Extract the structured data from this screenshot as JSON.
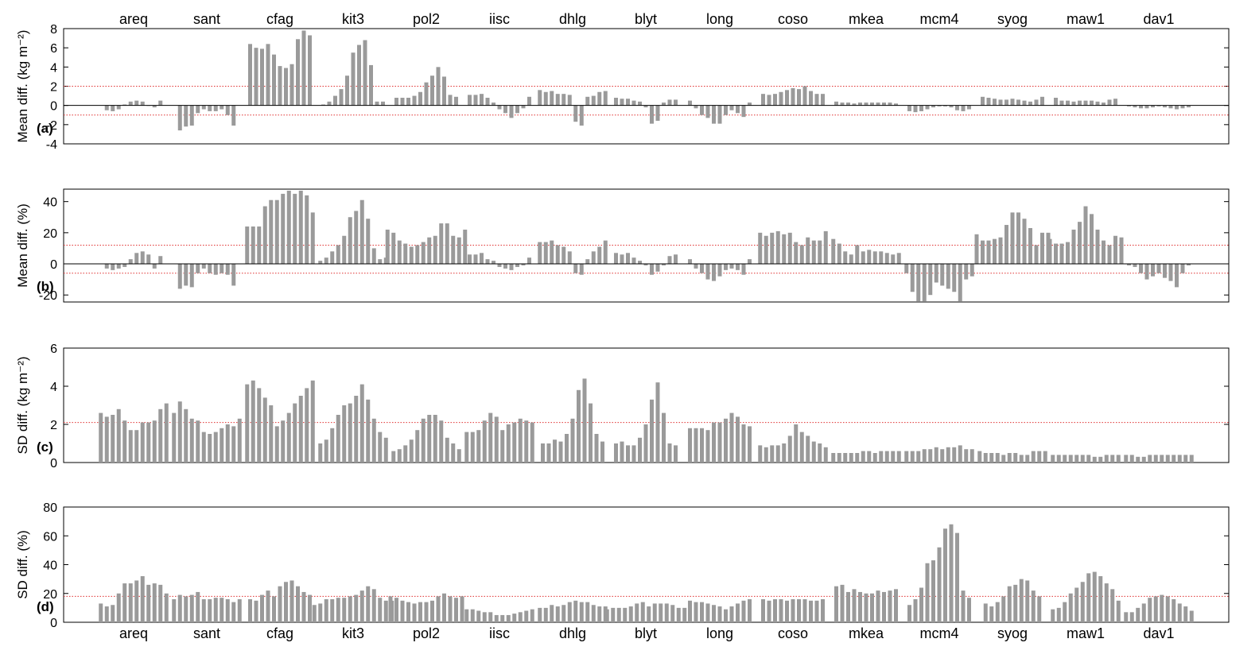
{
  "sites": [
    "areq",
    "sant",
    "cfag",
    "kit3",
    "pol2",
    "iisc",
    "dhlg",
    "blyt",
    "long",
    "coso",
    "mkea",
    "mcm4",
    "syog",
    "maw1",
    "dav1"
  ],
  "colors": {
    "bar": "#9a9a9a",
    "threshold": "#e03030",
    "axis": "#000000",
    "zero_line": "#000000"
  },
  "chart_data": [
    {
      "type": "bar",
      "panel": "(a)",
      "ylabel": "Mean diff. (kg m⁻²)",
      "ylim": [
        -4,
        8
      ],
      "yticks": [
        -4,
        -2,
        0,
        2,
        4,
        6,
        8
      ],
      "thresholds": [
        2.0,
        -1.0
      ],
      "zero_line": true,
      "series": [
        [
          -0.5,
          -0.6,
          -0.4,
          0.1,
          0.4,
          0.5,
          0.4,
          0.0,
          -0.2,
          0.5
        ],
        [
          -2.6,
          -2.2,
          -2.1,
          -0.8,
          -0.4,
          -0.6,
          -0.6,
          -0.4,
          -1.0,
          -2.1
        ],
        [
          6.4,
          6.0,
          5.9,
          6.4,
          5.3,
          4.1,
          3.9,
          4.3,
          6.9,
          7.8,
          7.3
        ],
        [
          0.1,
          0.4,
          1.0,
          1.7,
          3.1,
          5.5,
          6.3,
          6.8,
          4.2,
          0.4,
          0.4
        ],
        [
          0.8,
          0.8,
          0.8,
          1.0,
          1.4,
          2.4,
          3.1,
          4.0,
          3.0,
          1.1,
          0.9
        ],
        [
          1.1,
          1.1,
          1.2,
          0.8,
          0.3,
          -0.4,
          -0.8,
          -1.3,
          -0.8,
          -0.3,
          0.9
        ],
        [
          1.6,
          1.4,
          1.5,
          1.2,
          1.2,
          1.1,
          -1.7,
          -2.1,
          0.9,
          1.0,
          1.4,
          1.5
        ],
        [
          0.8,
          0.7,
          0.7,
          0.5,
          0.4,
          -0.2,
          -1.9,
          -1.6,
          0.3,
          0.6,
          0.6
        ],
        [
          0.5,
          -0.3,
          -1.0,
          -1.3,
          -1.9,
          -1.9,
          -1.0,
          -0.5,
          -0.8,
          -1.2,
          0.3
        ],
        [
          1.2,
          1.1,
          1.2,
          1.4,
          1.6,
          1.8,
          1.7,
          2.0,
          1.5,
          1.2,
          1.2
        ],
        [
          0.4,
          0.3,
          0.3,
          0.2,
          0.3,
          0.3,
          0.3,
          0.3,
          0.3,
          0.3,
          0.2
        ],
        [
          -0.6,
          -0.7,
          -0.6,
          -0.4,
          -0.2,
          -0.1,
          -0.1,
          -0.2,
          -0.5,
          -0.6,
          -0.4
        ],
        [
          0.9,
          0.8,
          0.7,
          0.6,
          0.6,
          0.7,
          0.6,
          0.5,
          0.4,
          0.6,
          0.9
        ],
        [
          0.8,
          0.5,
          0.5,
          0.4,
          0.5,
          0.5,
          0.5,
          0.4,
          0.3,
          0.6,
          0.7
        ],
        [
          -0.1,
          -0.2,
          -0.3,
          -0.3,
          -0.2,
          -0.1,
          -0.2,
          -0.3,
          -0.4,
          -0.3,
          -0.2
        ]
      ]
    },
    {
      "type": "bar",
      "panel": "(b)",
      "ylabel": "Mean diff. (%)",
      "ylim": [
        -24.5,
        48
      ],
      "yticks": [
        -20,
        0,
        20,
        40
      ],
      "thresholds": [
        12.0,
        -6.0
      ],
      "zero_line": true,
      "series": [
        [
          -3,
          -4,
          -3,
          -2,
          3,
          7,
          8,
          6,
          -3,
          5
        ],
        [
          -16,
          -14,
          -15,
          -6,
          -3,
          -6,
          -7,
          -6,
          -7,
          -14
        ],
        [
          24,
          24,
          24,
          37,
          41,
          41,
          45,
          47,
          45,
          47,
          44,
          33
        ],
        [
          2,
          4,
          8,
          12,
          18,
          30,
          34,
          41,
          29,
          10,
          3,
          4
        ],
        [
          22,
          20,
          15,
          13,
          11,
          12,
          14,
          17,
          18,
          26,
          26,
          18,
          17,
          22
        ],
        [
          6,
          6,
          7,
          3,
          2,
          -2,
          -3,
          -4,
          -2,
          -1,
          4
        ],
        [
          14,
          14,
          15,
          12,
          11,
          8,
          -6,
          -7,
          3,
          8,
          11,
          15
        ],
        [
          7,
          6,
          7,
          4,
          2,
          -1,
          -7,
          -5,
          -1,
          5,
          6
        ],
        [
          3,
          -3,
          -6,
          -10,
          -11,
          -8,
          -4,
          -3,
          -4,
          -7,
          3
        ],
        [
          20,
          18,
          20,
          21,
          19,
          20,
          14,
          12,
          17,
          15,
          15,
          21
        ],
        [
          16,
          13,
          8,
          6,
          12,
          8,
          9,
          8,
          8,
          7,
          6,
          7
        ],
        [
          -6,
          -18,
          -24,
          -24,
          -20,
          -12,
          -14,
          -16,
          -18,
          -24,
          -10,
          -8
        ],
        [
          19,
          15,
          15,
          16,
          17,
          25,
          33,
          33,
          29,
          23,
          12,
          20,
          20
        ],
        [
          16,
          13,
          13,
          14,
          22,
          27,
          37,
          32,
          22,
          15,
          12,
          18,
          17
        ],
        [
          -1,
          -2,
          -6,
          -10,
          -8,
          -6,
          -9,
          -11,
          -15,
          -6,
          -1
        ]
      ]
    },
    {
      "type": "bar",
      "panel": "(c)",
      "ylabel": "SD diff. (kg m⁻²)",
      "ylim": [
        0,
        6
      ],
      "yticks": [
        0,
        2,
        4,
        6
      ],
      "thresholds": [
        2.1
      ],
      "zero_line": false,
      "series": [
        [
          2.6,
          2.4,
          2.5,
          2.8,
          2.2,
          1.7,
          1.7,
          2.1,
          2.1,
          2.2,
          2.8,
          3.1
        ],
        [
          2.6,
          3.2,
          2.8,
          2.3,
          2.2,
          1.6,
          1.5,
          1.6,
          1.8,
          2.0,
          1.9,
          2.3
        ],
        [
          4.1,
          4.3,
          3.9,
          3.4,
          3.0,
          1.9,
          2.2,
          2.6,
          3.1,
          3.5,
          3.9,
          4.3
        ],
        [
          1.0,
          1.2,
          1.8,
          2.5,
          3.0,
          3.1,
          3.5,
          4.1,
          3.3,
          2.3,
          1.6,
          1.3
        ],
        [
          0.6,
          0.7,
          0.9,
          1.2,
          1.7,
          2.3,
          2.5,
          2.5,
          2.2,
          1.3,
          1.0,
          0.7
        ],
        [
          1.6,
          1.6,
          1.7,
          2.2,
          2.6,
          2.4,
          1.7,
          2.0,
          2.1,
          2.3,
          2.2,
          2.1
        ],
        [
          1.0,
          1.0,
          1.2,
          1.1,
          1.5,
          2.3,
          3.8,
          4.4,
          3.1,
          1.5,
          1.1
        ],
        [
          1.0,
          1.1,
          0.9,
          0.9,
          1.3,
          2.0,
          3.3,
          4.2,
          2.6,
          1.0,
          0.9
        ],
        [
          1.8,
          1.8,
          1.8,
          1.7,
          2.1,
          2.1,
          2.3,
          2.6,
          2.4,
          2.0,
          1.9
        ],
        [
          0.9,
          0.8,
          0.9,
          0.9,
          1.0,
          1.4,
          2.0,
          1.6,
          1.4,
          1.1,
          1.0,
          0.8
        ],
        [
          0.5,
          0.5,
          0.5,
          0.5,
          0.5,
          0.6,
          0.6,
          0.5,
          0.6,
          0.6,
          0.6,
          0.6
        ],
        [
          0.6,
          0.6,
          0.6,
          0.7,
          0.7,
          0.8,
          0.7,
          0.8,
          0.8,
          0.9,
          0.7,
          0.7
        ],
        [
          0.6,
          0.5,
          0.5,
          0.5,
          0.4,
          0.5,
          0.5,
          0.4,
          0.4,
          0.6,
          0.6,
          0.6
        ],
        [
          0.4,
          0.4,
          0.4,
          0.4,
          0.4,
          0.4,
          0.4,
          0.3,
          0.3,
          0.4,
          0.4,
          0.4
        ],
        [
          0.4,
          0.4,
          0.3,
          0.3,
          0.4,
          0.4,
          0.4,
          0.4,
          0.4,
          0.4,
          0.4,
          0.4
        ]
      ]
    },
    {
      "type": "bar",
      "panel": "(d)",
      "ylabel": "SD diff. (%)",
      "ylim": [
        0,
        80
      ],
      "yticks": [
        0,
        20,
        40,
        60,
        80
      ],
      "thresholds": [
        18.0
      ],
      "zero_line": false,
      "series": [
        [
          13,
          11,
          12,
          20,
          27,
          27,
          29,
          32,
          26,
          27,
          26,
          20
        ],
        [
          16,
          19,
          18,
          19,
          21,
          16,
          16,
          17,
          17,
          16,
          14,
          16
        ],
        [
          16,
          15,
          19,
          22,
          18,
          25,
          28,
          29,
          25,
          21,
          19
        ],
        [
          12,
          13,
          16,
          16,
          17,
          17,
          18,
          19,
          22,
          25,
          23,
          17,
          15,
          15
        ],
        [
          18,
          17,
          15,
          14,
          13,
          14,
          14,
          15,
          18,
          20,
          18,
          17,
          18
        ],
        [
          9,
          9,
          8,
          7,
          7,
          5,
          5,
          5,
          6,
          7,
          8,
          9
        ],
        [
          10,
          10,
          12,
          11,
          12,
          14,
          15,
          14,
          14,
          12,
          11,
          11
        ],
        [
          9,
          10,
          10,
          10,
          11,
          13,
          14,
          11,
          13,
          13,
          13,
          12,
          10,
          10
        ],
        [
          15,
          14,
          14,
          13,
          12,
          11,
          9,
          11,
          13,
          15,
          16
        ],
        [
          16,
          15,
          16,
          16,
          15,
          16,
          16,
          16,
          15,
          15,
          16
        ],
        [
          25,
          26,
          21,
          23,
          21,
          20,
          20,
          22,
          21,
          22,
          23
        ],
        [
          12,
          16,
          24,
          41,
          43,
          52,
          65,
          68,
          62,
          22,
          17
        ],
        [
          13,
          11,
          14,
          18,
          25,
          26,
          30,
          29,
          22,
          18
        ],
        [
          9,
          10,
          14,
          20,
          24,
          28,
          34,
          35,
          32,
          27,
          23,
          15
        ],
        [
          7,
          7,
          10,
          13,
          17,
          18,
          19,
          18,
          16,
          13,
          11,
          8
        ]
      ]
    }
  ]
}
